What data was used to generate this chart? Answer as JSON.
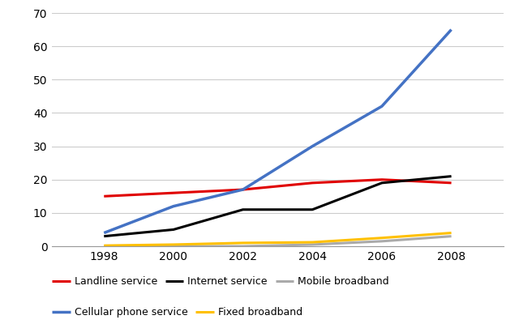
{
  "years": [
    1998,
    2000,
    2002,
    2004,
    2006,
    2008
  ],
  "series": {
    "Landline service": {
      "values": [
        15,
        16,
        17,
        19,
        20,
        19
      ],
      "color": "#e00000",
      "linewidth": 2.2
    },
    "Internet service": {
      "values": [
        3,
        5,
        11,
        11,
        19,
        21
      ],
      "color": "#000000",
      "linewidth": 2.2
    },
    "Mobile broadband": {
      "values": [
        0,
        0,
        0,
        0.5,
        1.5,
        3
      ],
      "color": "#aaaaaa",
      "linewidth": 2.2
    },
    "Cellular phone service": {
      "values": [
        4,
        12,
        17,
        30,
        42,
        65
      ],
      "color": "#4472c4",
      "linewidth": 2.5
    },
    "Fixed broadband": {
      "values": [
        0.2,
        0.5,
        1,
        1.2,
        2.5,
        4
      ],
      "color": "#ffc000",
      "linewidth": 2.2
    }
  },
  "legend_row1": [
    "Landline service",
    "Internet service",
    "Mobile broadband"
  ],
  "legend_row2": [
    "Cellular phone service",
    "Fixed broadband"
  ],
  "ylim": [
    0,
    70
  ],
  "yticks": [
    0,
    10,
    20,
    30,
    40,
    50,
    60,
    70
  ],
  "xticks": [
    1998,
    2000,
    2002,
    2004,
    2006,
    2008
  ],
  "background_color": "#ffffff",
  "grid_color": "#cccccc",
  "legend_fontsize": 9,
  "axis_fontsize": 10
}
